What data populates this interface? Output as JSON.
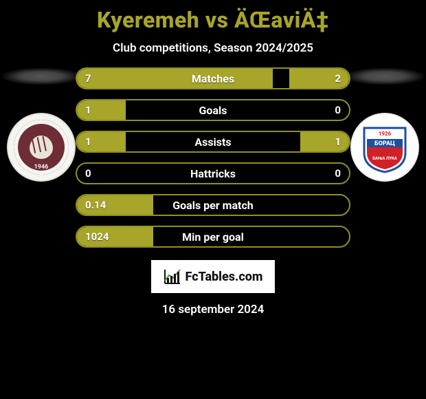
{
  "title": "Kyeremeh vs ÄŒaviÄ‡",
  "subtitle": "Club competitions, Season 2024/2025",
  "footer_date": "16 september 2024",
  "footer_brand": "FcTables.com",
  "colors": {
    "accent": "#a7a52a",
    "bar_border": "#8f8f24",
    "background": "#000000",
    "text": "#ffffff",
    "crest_left_bg": "#f4f4f0",
    "crest_left_inner": "#6e2d35",
    "crest_right_bg": "#ffffff"
  },
  "crest_left": {
    "year": "1946"
  },
  "crest_right": {
    "year": "1926"
  },
  "rows": [
    {
      "label": "Matches",
      "left": "7",
      "right": "2",
      "left_pct": 72,
      "right_pct": 22
    },
    {
      "label": "Goals",
      "left": "1",
      "right": "0",
      "left_pct": 18,
      "right_pct": 0
    },
    {
      "label": "Assists",
      "left": "1",
      "right": "1",
      "left_pct": 18,
      "right_pct": 18
    },
    {
      "label": "Hattricks",
      "left": "0",
      "right": "0",
      "left_pct": 0,
      "right_pct": 0
    },
    {
      "label": "Goals per match",
      "left": "0.14",
      "right": "",
      "left_pct": 28,
      "right_pct": 0
    },
    {
      "label": "Min per goal",
      "left": "1024",
      "right": "",
      "left_pct": 28,
      "right_pct": 0
    }
  ]
}
